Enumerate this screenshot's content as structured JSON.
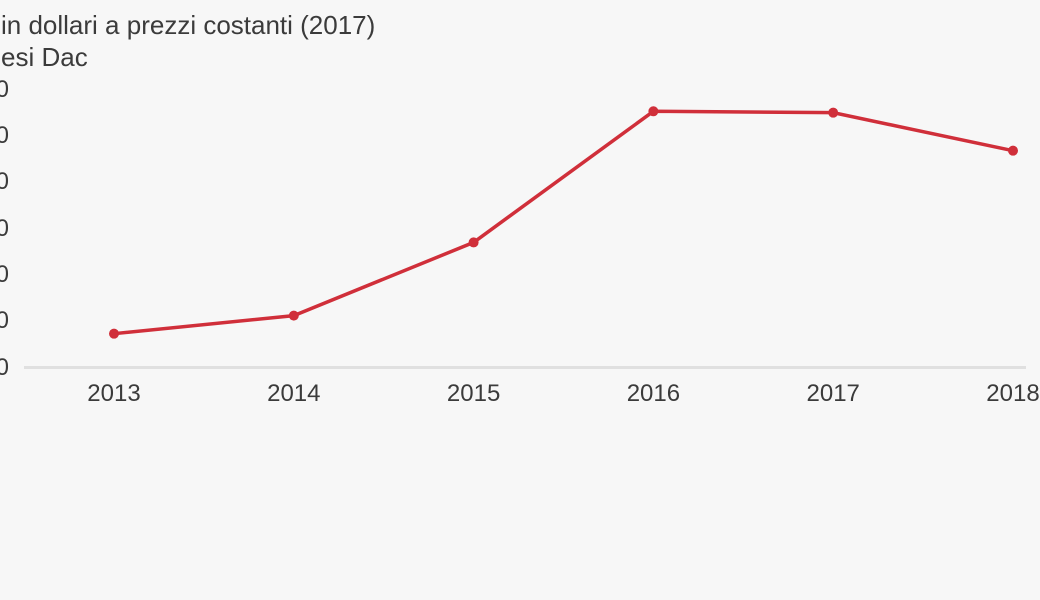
{
  "page": {
    "background_color": "#f7f7f7"
  },
  "title": {
    "line1": "in dollari a prezzi costanti (2017)",
    "line2": "esi Dac",
    "color": "#3b3b3b"
  },
  "chart_data": {
    "type": "line",
    "title_visible_line1": "in dollari a prezzi costanti (2017)",
    "title_visible_line2": "esi Dac",
    "categories": [
      "2013",
      "2014",
      "2015",
      "2016",
      "2017",
      "2018"
    ],
    "series": [
      {
        "name": "main-series",
        "values_tick_units": [
          0.73,
          1.12,
          2.7,
          5.53,
          5.5,
          4.68
        ]
      }
    ],
    "x_axis": {
      "tick_labels": [
        "2013",
        "2014",
        "2015",
        "2016",
        "2017",
        "2018"
      ]
    },
    "y_axis": {
      "num_ticks": 7,
      "tick_labels_visible": [
        "0",
        "0",
        "0",
        "0",
        "0",
        "0",
        "0"
      ],
      "ylim_tick_units": [
        0,
        6
      ],
      "gridlines": false
    },
    "legend": "none",
    "colors": {
      "line": "#d02f3a",
      "point": "#d02f3a",
      "axis_line": "#e0e0e0",
      "labels": "#3b3b3b"
    }
  }
}
